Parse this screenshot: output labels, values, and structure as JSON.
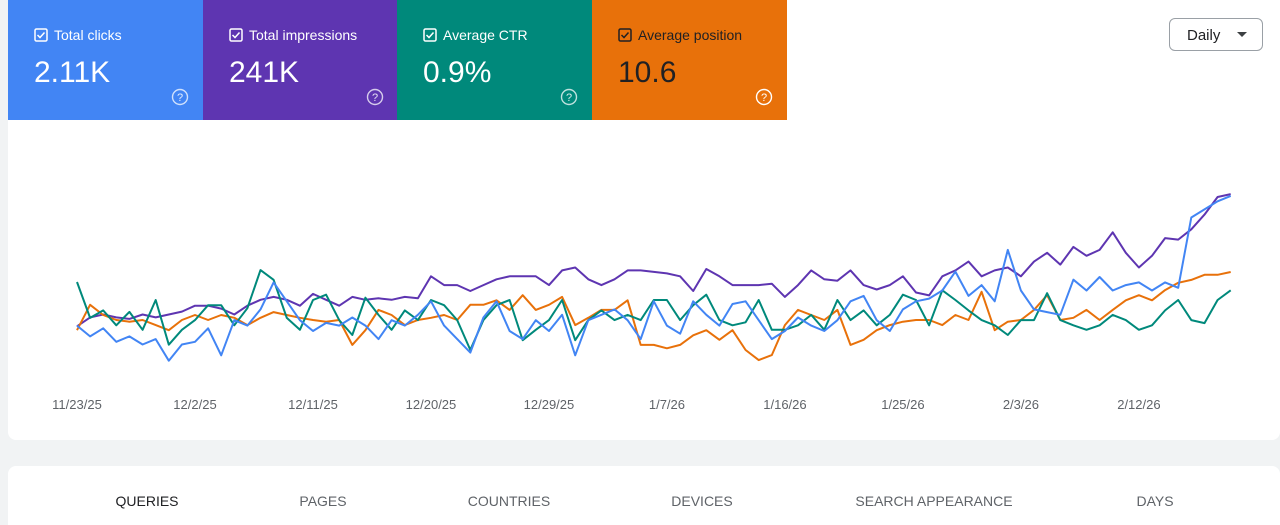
{
  "chart_data": {
    "type": "line",
    "categories": [
      "11/23/25",
      null,
      null,
      null,
      null,
      null,
      null,
      null,
      null,
      "12/2/25",
      null,
      null,
      null,
      null,
      null,
      null,
      null,
      null,
      "12/11/25",
      null,
      null,
      null,
      null,
      null,
      null,
      null,
      null,
      "12/20/25",
      null,
      null,
      null,
      null,
      null,
      null,
      null,
      null,
      "12/29/25",
      null,
      null,
      null,
      null,
      null,
      null,
      null,
      null,
      "1/7/26",
      null,
      null,
      null,
      null,
      null,
      null,
      null,
      null,
      "1/16/26",
      null,
      null,
      null,
      null,
      null,
      null,
      null,
      null,
      "1/25/26",
      null,
      null,
      null,
      null,
      null,
      null,
      null,
      null,
      "2/3/26",
      null,
      null,
      null,
      null,
      null,
      null,
      null,
      null,
      "2/12/26",
      null,
      null,
      null,
      null,
      null,
      null,
      null
    ],
    "series": [
      {
        "name": "Total clicks",
        "summary": "2.11K",
        "color": "#4285f4",
        "ylim": [
          0,
          87
        ],
        "values": [
          22,
          18,
          21,
          16,
          18,
          15,
          17,
          9,
          15,
          16,
          21,
          11,
          24,
          22,
          28,
          38,
          31,
          24,
          20,
          23,
          22,
          25,
          22,
          17,
          24,
          22,
          26,
          31,
          22,
          17,
          12,
          25,
          31,
          20,
          17,
          24,
          20,
          26,
          11,
          24,
          26,
          28,
          24,
          17,
          31,
          22,
          19,
          31,
          26,
          22,
          30,
          31,
          24,
          17,
          20,
          25,
          22,
          20,
          24,
          31,
          33,
          24,
          20,
          28,
          31,
          32,
          35,
          42,
          33,
          37,
          31,
          50,
          35,
          28,
          27,
          26,
          39,
          35,
          40,
          35,
          37,
          38,
          35,
          38,
          36,
          62,
          65,
          68,
          70
        ]
      },
      {
        "name": "Total impressions",
        "summary": "241K",
        "color": "#5e35b1",
        "ylim": [
          0,
          8000
        ],
        "values": [
          2000,
          2300,
          2400,
          2300,
          2250,
          2400,
          2300,
          2400,
          2500,
          2700,
          2700,
          2600,
          2400,
          2700,
          2900,
          3000,
          2900,
          2700,
          3100,
          2900,
          2700,
          3000,
          2900,
          2950,
          2900,
          3000,
          2950,
          3700,
          3400,
          3400,
          3200,
          3400,
          3600,
          3700,
          3700,
          3700,
          3400,
          3900,
          4000,
          3600,
          3400,
          3600,
          3900,
          3900,
          3850,
          3800,
          3700,
          3200,
          3950,
          3700,
          3400,
          3400,
          3400,
          3450,
          3000,
          3400,
          3900,
          3600,
          3550,
          3900,
          3400,
          3250,
          3400,
          3700,
          3150,
          3050,
          3700,
          3900,
          4200,
          3700,
          3900,
          4000,
          3700,
          4200,
          4500,
          4100,
          4700,
          4400,
          4600,
          5200,
          4500,
          4000,
          4400,
          5000,
          4950,
          5300,
          5800,
          6400,
          6500
        ]
      },
      {
        "name": "Average CTR",
        "summary": "0.9%",
        "color": "#00897b",
        "ylim": [
          0,
          3.15
        ],
        "values": [
          1.38,
          0.9,
          1.0,
          0.8,
          0.98,
          0.74,
          1.14,
          0.54,
          0.74,
          0.87,
          1.07,
          1.07,
          0.8,
          1.03,
          1.54,
          1.41,
          0.9,
          0.74,
          1.14,
          1.21,
          0.87,
          0.67,
          1.17,
          0.94,
          0.74,
          1.0,
          0.87,
          1.14,
          1.07,
          0.87,
          0.47,
          0.87,
          1.07,
          1.14,
          0.6,
          0.74,
          0.87,
          1.14,
          0.6,
          0.87,
          1.0,
          0.87,
          0.94,
          0.87,
          1.14,
          1.14,
          0.87,
          1.07,
          1.21,
          0.87,
          0.8,
          0.84,
          1.14,
          0.74,
          0.74,
          0.8,
          0.94,
          0.74,
          1.14,
          0.87,
          1.0,
          0.8,
          0.94,
          1.21,
          1.14,
          0.8,
          1.27,
          1.14,
          1.0,
          0.87,
          0.8,
          0.67,
          0.87,
          0.87,
          1.23,
          0.87,
          0.8,
          0.74,
          0.8,
          0.94,
          0.87,
          0.74,
          0.8,
          1.0,
          1.14,
          0.87,
          0.83,
          1.14,
          1.27
        ]
      },
      {
        "name": "Average position",
        "summary": "10.6",
        "color": "#e8710a",
        "ylim": [
          0,
          41.6
        ],
        "values": [
          9.7,
          14.2,
          12.4,
          11.5,
          11.2,
          11.5,
          10.6,
          9.7,
          11.5,
          12.4,
          11.5,
          12.4,
          11.9,
          10.6,
          11.9,
          12.9,
          12.4,
          11.9,
          11.5,
          11.2,
          11.5,
          7.1,
          9.7,
          13.3,
          12.4,
          10.6,
          11.5,
          11.9,
          12.4,
          11.5,
          14.2,
          14.2,
          15.0,
          13.3,
          15.9,
          13.3,
          14.2,
          15.6,
          10.6,
          11.9,
          13.3,
          13.3,
          15.0,
          7.1,
          7.1,
          6.5,
          7.1,
          8.8,
          9.7,
          8.0,
          9.7,
          6.2,
          4.4,
          5.3,
          10.6,
          13.3,
          12.4,
          11.5,
          13.3,
          7.1,
          8.0,
          9.7,
          10.6,
          11.2,
          11.5,
          11.5,
          10.6,
          12.4,
          11.5,
          16.5,
          9.7,
          11.2,
          11.5,
          13.3,
          15.9,
          11.5,
          11.9,
          13.3,
          11.5,
          13.3,
          15.0,
          15.9,
          15.0,
          16.8,
          18.1,
          18.6,
          19.5,
          19.5,
          20.0
        ]
      }
    ]
  },
  "controls": {
    "granularity": "Daily"
  },
  "tabs": [
    "QUERIES",
    "PAGES",
    "COUNTRIES",
    "DEVICES",
    "SEARCH APPEARANCE",
    "DAYS"
  ]
}
